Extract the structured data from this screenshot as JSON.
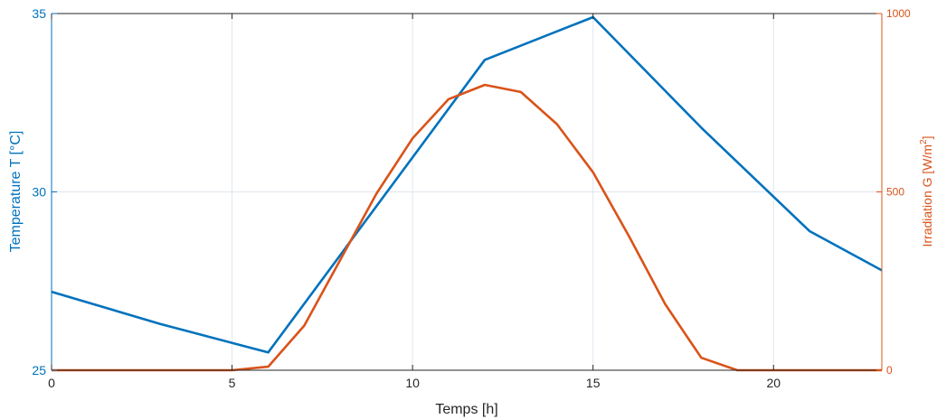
{
  "chart_data": {
    "type": "line",
    "xlabel": "Temps [h]",
    "ylabel_left": "Temperature T [°C]",
    "ylabel_right_base": "Irradiation G [W/m",
    "ylabel_right_sup": "2",
    "ylabel_right_end": "]",
    "xlim": [
      0,
      23
    ],
    "ylim_left": [
      25,
      35
    ],
    "ylim_right": [
      0,
      1000
    ],
    "xticks": [
      0,
      5,
      10,
      15,
      20
    ],
    "yticks_left": [
      25,
      30,
      35
    ],
    "yticks_right": [
      0,
      500,
      1000
    ],
    "grid": true,
    "colors": {
      "temperature": "#0072BD",
      "irradiation": "#D95319",
      "grid": "#dfe6ee",
      "axis": "#262626"
    },
    "series": [
      {
        "axis": "left",
        "x": [
          0,
          3,
          6,
          12,
          15,
          18,
          21,
          23
        ],
        "values": [
          27.2,
          26.3,
          25.5,
          33.7,
          34.9,
          31.8,
          28.9,
          27.8
        ]
      },
      {
        "axis": "right",
        "x": [
          0,
          5,
          6,
          7,
          8,
          9,
          10,
          11,
          12,
          13,
          14,
          15,
          16,
          17,
          18,
          19,
          20,
          23
        ],
        "values": [
          0,
          0,
          10,
          125,
          310,
          495,
          650,
          760,
          800,
          780,
          690,
          555,
          375,
          185,
          35,
          0,
          0,
          0
        ]
      }
    ]
  }
}
